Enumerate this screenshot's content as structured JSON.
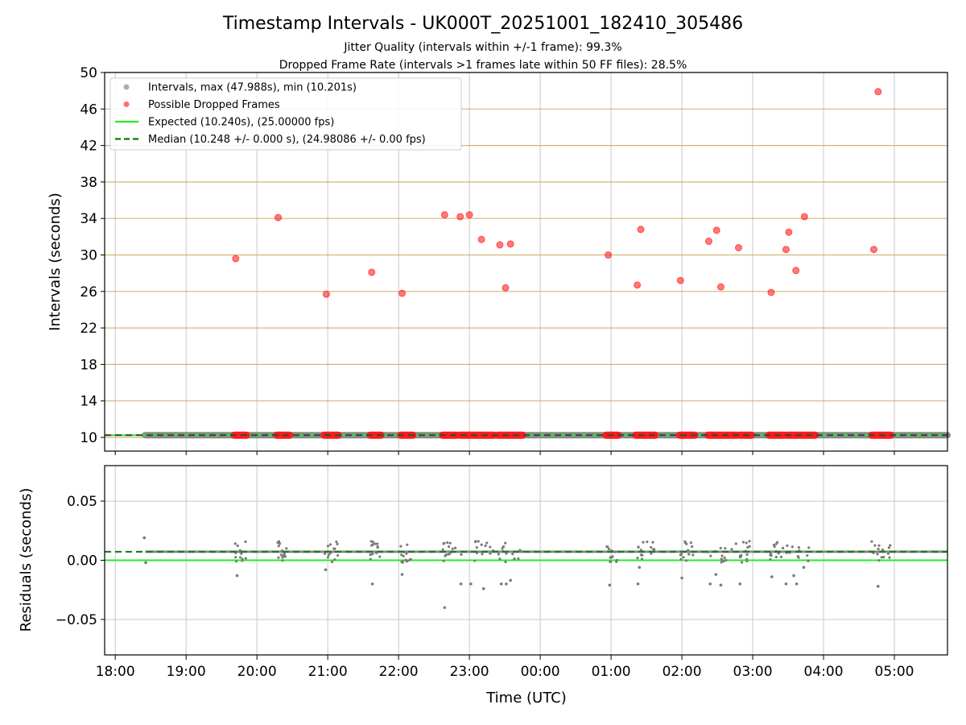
{
  "chart_data": [
    {
      "type": "scatter",
      "title": "Timestamp Intervals - UK000T_20251001_182410_305486",
      "subtitle_lines": [
        "Jitter Quality (intervals within +/-1 frame): 99.3%",
        "Dropped Frame Rate (intervals >1 frames late within 50 FF files): 28.5%"
      ],
      "xlabel": "",
      "ylabel": "Intervals (seconds)",
      "xlim_hours": [
        17.85,
        29.75
      ],
      "ylim": [
        8.5,
        50
      ],
      "yticks": [
        10,
        14,
        18,
        22,
        26,
        30,
        34,
        38,
        42,
        46,
        50
      ],
      "ytick_labels": [
        "10",
        "14",
        "18",
        "22",
        "26",
        "30",
        "34",
        "38",
        "42",
        "46",
        "50"
      ],
      "legend": [
        {
          "label": "Intervals, max (47.988s), min (10.201s)",
          "color": "#8a8a8a",
          "kind": "dot"
        },
        {
          "label": "Possible Dropped Frames",
          "color": "#ff3030",
          "kind": "dot"
        },
        {
          "label": "Expected (10.240s), (25.00000 fps)",
          "color": "#22ee22",
          "kind": "solid"
        },
        {
          "label": "Median (10.248 +/- 0.000 s), (24.98086 +/- 0.00 fps)",
          "color": "#007a00",
          "kind": "dashed"
        }
      ],
      "legend_position": "top-left",
      "expected": 10.24,
      "median": 10.248,
      "intervals_x_range": [
        18.42,
        29.75
      ],
      "dropped_frames": {
        "x": [
          19.7,
          20.3,
          20.98,
          21.62,
          22.05,
          22.65,
          22.87,
          23.0,
          23.17,
          23.43,
          23.51,
          23.58,
          24.96,
          25.37,
          25.42,
          25.98,
          26.38,
          26.49,
          26.55,
          26.8,
          27.26,
          27.47,
          27.51,
          27.61,
          27.73,
          28.71,
          28.77
        ],
        "y": [
          29.6,
          34.1,
          25.7,
          28.1,
          25.8,
          34.4,
          34.2,
          34.4,
          31.7,
          31.1,
          26.4,
          31.2,
          30.0,
          26.7,
          32.8,
          27.2,
          31.5,
          32.7,
          26.5,
          30.8,
          25.9,
          30.6,
          32.5,
          28.3,
          34.2,
          30.6,
          47.9
        ]
      },
      "dropped_clusters_at_10": [
        [
          19.68,
          19.85
        ],
        [
          20.28,
          20.46
        ],
        [
          20.95,
          21.15
        ],
        [
          21.6,
          21.75
        ],
        [
          22.03,
          22.2
        ],
        [
          22.62,
          22.82
        ],
        [
          22.86,
          23.35
        ],
        [
          23.4,
          23.75
        ],
        [
          24.93,
          25.1
        ],
        [
          25.35,
          25.62
        ],
        [
          25.97,
          26.18
        ],
        [
          26.37,
          26.78
        ],
        [
          26.82,
          26.98
        ],
        [
          27.23,
          27.45
        ],
        [
          27.48,
          27.88
        ],
        [
          28.68,
          28.95
        ]
      ],
      "gridline_color": "#c8a55a"
    },
    {
      "type": "scatter",
      "xlabel": "Time (UTC)",
      "ylabel": "Residuals (seconds)",
      "ylim": [
        -0.08,
        0.08
      ],
      "yticks": [
        0.05,
        0.0,
        -0.05
      ],
      "ytick_labels": [
        "0.05",
        "0.00",
        "−0.05"
      ],
      "xticks_hours": [
        18,
        19,
        20,
        21,
        22,
        23,
        24,
        25,
        26,
        27,
        28,
        29
      ],
      "xtick_labels": [
        "18:00",
        "19:00",
        "20:00",
        "21:00",
        "22:00",
        "23:00",
        "00:00",
        "01:00",
        "02:00",
        "03:00",
        "04:00",
        "05:00"
      ],
      "expected_residual": 0.0,
      "median_residual": 0.0072,
      "outliers": {
        "x": [
          18.41,
          18.43,
          19.72,
          20.97,
          21.63,
          22.05,
          22.65,
          22.88,
          23.02,
          23.2,
          23.45,
          23.52,
          23.58,
          24.98,
          25.4,
          25.38,
          26.0,
          26.4,
          26.48,
          26.55,
          26.82,
          27.27,
          27.47,
          27.58,
          27.62,
          27.72,
          28.77
        ],
        "y": [
          0.019,
          -0.002,
          -0.013,
          -0.008,
          -0.02,
          -0.012,
          -0.04,
          -0.02,
          -0.02,
          -0.024,
          -0.02,
          -0.02,
          -0.017,
          -0.021,
          -0.006,
          -0.02,
          -0.015,
          -0.02,
          -0.012,
          -0.021,
          -0.02,
          -0.014,
          -0.02,
          -0.013,
          -0.02,
          -0.006,
          -0.022
        ]
      }
    }
  ]
}
